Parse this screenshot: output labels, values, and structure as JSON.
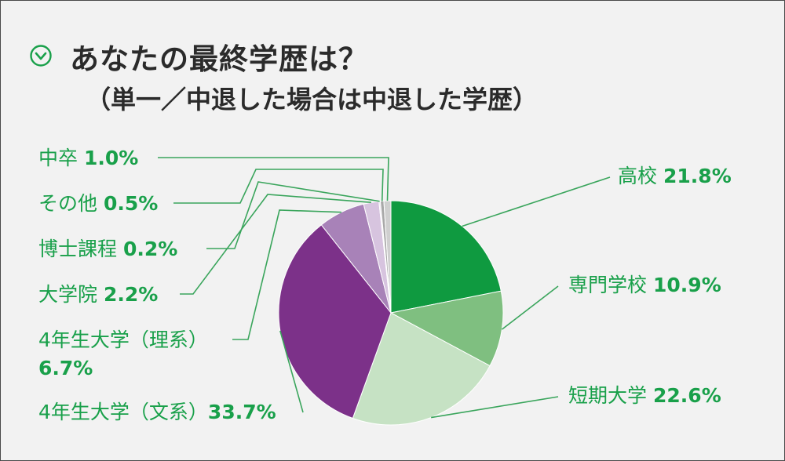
{
  "header": {
    "title": "あなたの最終学歴は？",
    "subtitle": "（単一／中退した場合は中退した学歴）",
    "icon": "check-circle-icon"
  },
  "colors": {
    "accent_green": "#19a04a",
    "leader_line": "#3aa55c"
  },
  "chart_data": {
    "type": "pie",
    "title": "あなたの最終学歴は？",
    "subtitle": "（単一／中退した場合は中退した学歴）",
    "unit": "%",
    "start": "12 o'clock",
    "direction": "clockwise",
    "slices": [
      {
        "name": "高校",
        "value": 21.8,
        "label": "21.8%",
        "color": "#0f9a40"
      },
      {
        "name": "専門学校",
        "value": 10.9,
        "label": "10.9%",
        "color": "#7fbf80"
      },
      {
        "name": "短期大学",
        "value": 22.6,
        "label": "22.6%",
        "color": "#c6e2c4"
      },
      {
        "name": "4年生大学（文系）",
        "value": 33.7,
        "label": "33.7%",
        "color": "#7c3189"
      },
      {
        "name": "4年生大学（理系）",
        "value": 6.7,
        "label": "6.7%",
        "color": "#a882b8"
      },
      {
        "name": "大学院",
        "value": 2.2,
        "label": "2.2%",
        "color": "#d7c4df"
      },
      {
        "name": "博士課程",
        "value": 0.2,
        "label": "0.2%",
        "color": "#ece4ef"
      },
      {
        "name": "その他",
        "value": 0.5,
        "label": "0.5%",
        "color": "#a8a8a8"
      },
      {
        "name": "中卒",
        "value": 1.0,
        "label": "1.0%",
        "color": "#cfcfcf"
      }
    ]
  }
}
